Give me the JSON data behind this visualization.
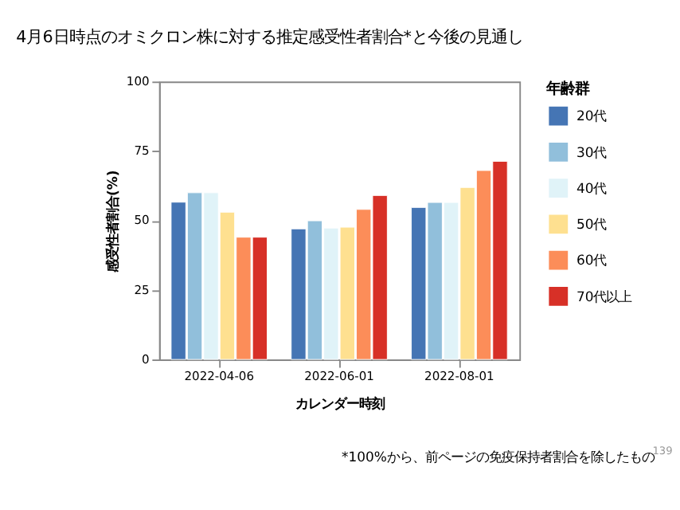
{
  "chart_data": {
    "type": "bar",
    "title": "4月6日時点のオミクロン株に対する推定感受性者割合*と今後の見通し",
    "xlabel": "カレンダー時刻",
    "ylabel": "感受性者割合(%)",
    "legend_title": "年齢群",
    "categories": [
      "2022-04-06",
      "2022-06-01",
      "2022-08-01"
    ],
    "series": [
      {
        "name": "20代",
        "color": "#4575b4",
        "values": [
          56.6,
          47,
          54.7
        ]
      },
      {
        "name": "30代",
        "color": "#91bfdb",
        "values": [
          60,
          49.9,
          56.5
        ]
      },
      {
        "name": "40代",
        "color": "#e0f3f8",
        "values": [
          60,
          47.3,
          56.5
        ]
      },
      {
        "name": "50代",
        "color": "#fee090",
        "values": [
          53,
          47.6,
          61.9
        ]
      },
      {
        "name": "60代",
        "color": "#fc8d59",
        "values": [
          44,
          54,
          68
        ]
      },
      {
        "name": "70代以上",
        "color": "#d73027",
        "values": [
          44,
          59,
          71.3
        ]
      }
    ],
    "ylim": [
      0,
      100
    ],
    "yticks": [
      0,
      25,
      50,
      75,
      100
    ],
    "grid": false,
    "legend": "right",
    "annotations": [
      "*100%から、前ページの免疫保持者割合を除したもの",
      "139"
    ]
  }
}
